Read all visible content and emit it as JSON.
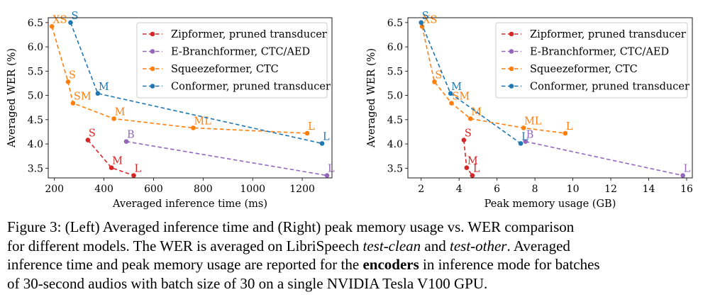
{
  "chart_data": [
    {
      "type": "line",
      "title": "",
      "xlabel": "Averaged inference time (ms)",
      "ylabel": "Averaged WER (%)",
      "xlim": [
        175,
        1320
      ],
      "ylim": [
        3.3,
        6.6
      ],
      "xticks": [
        200,
        400,
        600,
        800,
        1000,
        1200
      ],
      "yticks": [
        3.5,
        4.0,
        4.5,
        5.0,
        5.5,
        6.0,
        6.5
      ],
      "xtick_labels": [
        "200",
        "400",
        "600",
        "800",
        "1000",
        "1200"
      ],
      "ytick_labels": [
        "3.5",
        "4.0",
        "4.5",
        "5.0",
        "5.5",
        "6.0",
        "6.5"
      ],
      "legend_position": "top-right",
      "series": [
        {
          "name": "Zipformer, pruned transducer",
          "color": "#d62728",
          "points": [
            {
              "label": "S",
              "x": 335,
              "y": 4.08
            },
            {
              "label": "M",
              "x": 430,
              "y": 3.51
            },
            {
              "label": "L",
              "x": 520,
              "y": 3.35
            }
          ]
        },
        {
          "name": "E-Branchformer, CTC/AED",
          "color": "#9467bd",
          "points": [
            {
              "label": "B",
              "x": 490,
              "y": 4.05
            },
            {
              "label": "L",
              "x": 1300,
              "y": 3.35
            }
          ]
        },
        {
          "name": "Squeezeformer, CTC",
          "color": "#ff7f0e",
          "points": [
            {
              "label": "XS",
              "x": 190,
              "y": 6.42
            },
            {
              "label": "S",
              "x": 255,
              "y": 5.28
            },
            {
              "label": "SM",
              "x": 275,
              "y": 4.84
            },
            {
              "label": "M",
              "x": 440,
              "y": 4.52
            },
            {
              "label": "ML",
              "x": 760,
              "y": 4.33
            },
            {
              "label": "L",
              "x": 1220,
              "y": 4.22
            }
          ]
        },
        {
          "name": "Conformer, pruned transducer",
          "color": "#1f77b4",
          "points": [
            {
              "label": "S",
              "x": 265,
              "y": 6.5
            },
            {
              "label": "M",
              "x": 375,
              "y": 5.04
            },
            {
              "label": "L",
              "x": 1280,
              "y": 4.01
            }
          ]
        }
      ]
    },
    {
      "type": "line",
      "title": "",
      "xlabel": "Peak memory usage (GB)",
      "ylabel": "Averaged WER (%)",
      "xlim": [
        1.3,
        16.3
      ],
      "ylim": [
        3.3,
        6.6
      ],
      "xticks": [
        2,
        4,
        6,
        8,
        10,
        12,
        14,
        16
      ],
      "yticks": [
        3.5,
        4.0,
        4.5,
        5.0,
        5.5,
        6.0,
        6.5
      ],
      "xtick_labels": [
        "2",
        "4",
        "6",
        "8",
        "10",
        "12",
        "14",
        "16"
      ],
      "ytick_labels": [
        "3.5",
        "4.0",
        "4.5",
        "5.0",
        "5.5",
        "6.0",
        "6.5"
      ],
      "legend_position": "top-right",
      "series": [
        {
          "name": "Zipformer, pruned transducer",
          "color": "#d62728",
          "points": [
            {
              "label": "S",
              "x": 4.25,
              "y": 4.08
            },
            {
              "label": "M",
              "x": 4.4,
              "y": 3.51
            },
            {
              "label": "L",
              "x": 4.7,
              "y": 3.35
            }
          ]
        },
        {
          "name": "E-Branchformer, CTC/AED",
          "color": "#9467bd",
          "points": [
            {
              "label": "B",
              "x": 7.5,
              "y": 4.05
            },
            {
              "label": "L",
              "x": 15.8,
              "y": 3.35
            }
          ]
        },
        {
          "name": "Squeezeformer, CTC",
          "color": "#ff7f0e",
          "points": [
            {
              "label": "XS",
              "x": 2.05,
              "y": 6.42
            },
            {
              "label": "S",
              "x": 2.7,
              "y": 5.28
            },
            {
              "label": "SM",
              "x": 3.6,
              "y": 4.84
            },
            {
              "label": "M",
              "x": 4.6,
              "y": 4.52
            },
            {
              "label": "ML",
              "x": 7.4,
              "y": 4.33
            },
            {
              "label": "L",
              "x": 9.6,
              "y": 4.22
            }
          ]
        },
        {
          "name": "Conformer, pruned transducer",
          "color": "#1f77b4",
          "points": [
            {
              "label": "S",
              "x": 2.0,
              "y": 6.5
            },
            {
              "label": "M",
              "x": 3.55,
              "y": 5.04
            },
            {
              "label": "L",
              "x": 7.25,
              "y": 4.01
            }
          ]
        }
      ]
    }
  ],
  "caption": {
    "label": "Figure 3:",
    "line1": " (Left) Averaged inference time and (Right) peak memory usage vs.  WER comparison",
    "line2_a": "for different models.  The WER is averaged on LibriSpeech ",
    "line2_test_clean": "test-clean",
    "line2_and": " and ",
    "line2_test_other": "test-other",
    "line2_b": ".  Averaged",
    "line3_a": "inference time and peak memory usage are reported for the ",
    "line3_bold": "encoders",
    "line3_b": " in inference mode for batches",
    "line4": "of 30-second audios with batch size of 30 on a single NVIDIA Tesla V100 GPU."
  }
}
